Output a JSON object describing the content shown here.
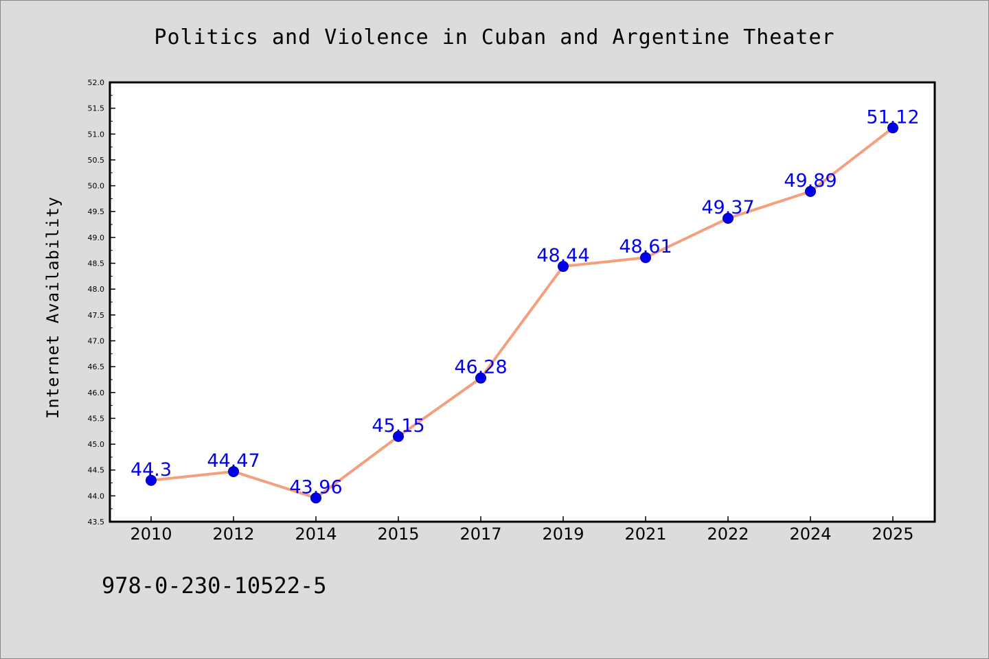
{
  "chart_data": {
    "type": "line",
    "title": "Politics and Violence in Cuban and Argentine Theater",
    "xlabel": "",
    "ylabel": "Internet Availability",
    "categories": [
      "2010",
      "2012",
      "2014",
      "2015",
      "2017",
      "2019",
      "2021",
      "2022",
      "2024",
      "2025"
    ],
    "values": [
      44.3,
      44.47,
      43.96,
      45.15,
      46.28,
      48.44,
      48.61,
      49.37,
      49.89,
      51.12
    ],
    "data_labels": [
      "44.3",
      "44.47",
      "43.96",
      "45.15",
      "46.28",
      "48.44",
      "48.61",
      "49.37",
      "49.89",
      "51.12"
    ],
    "ylim": [
      43.5,
      52.0
    ],
    "yticks": [
      "43.5",
      "44.0",
      "44.5",
      "45.0",
      "45.5",
      "46.0",
      "46.5",
      "47.0",
      "47.5",
      "48.0",
      "48.5",
      "49.0",
      "49.5",
      "50.0",
      "50.5",
      "51.0",
      "51.5",
      "52.0"
    ],
    "grid": false,
    "legend": "none",
    "line_color": "#f4a07e",
    "marker_color": "#0000ee",
    "label_color": "#0000ee",
    "background_color": "#dcdcdc",
    "plot_background": "#ffffff"
  },
  "footer": {
    "isbn": "978-0-230-10522-5"
  }
}
